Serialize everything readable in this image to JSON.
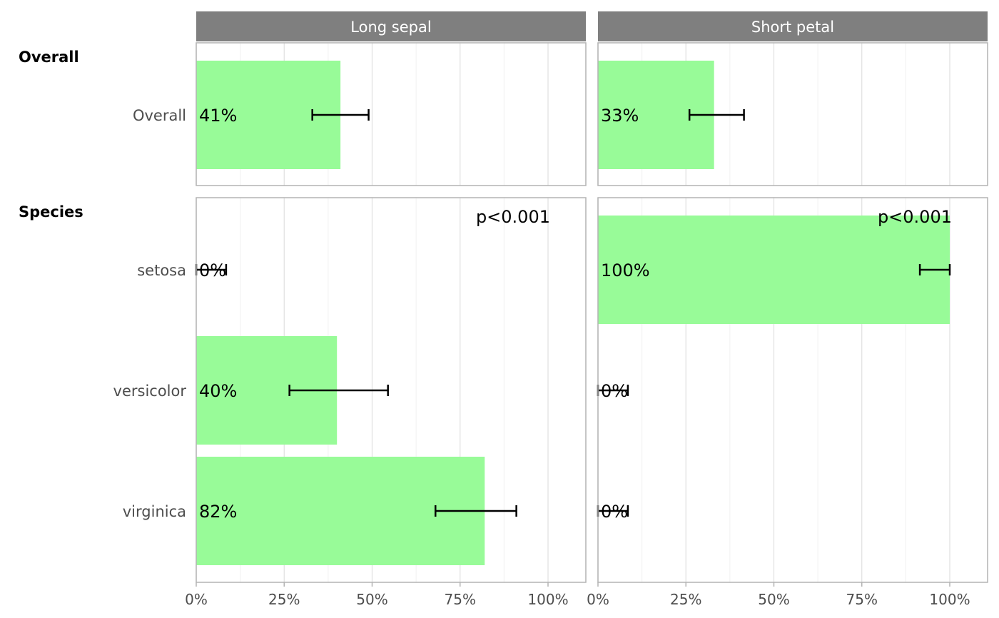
{
  "chart_data": {
    "type": "bar",
    "orientation": "horizontal",
    "xlim": [
      0,
      100
    ],
    "x_ticks": [
      "0%",
      "25%",
      "50%",
      "75%",
      "100%"
    ],
    "x_tick_values": [
      0,
      25,
      50,
      75,
      100
    ],
    "grid": true,
    "bar_color": "#98FB98",
    "panel_border_color": "#b3b3b3",
    "strip_color": "#7f7f7f",
    "columns": [
      "Long sepal",
      "Short petal"
    ],
    "groups": [
      {
        "label": "Overall",
        "p_value": "",
        "rows": [
          {
            "label": "Overall",
            "values": [
              {
                "value": 41,
                "label": "41%",
                "ci": [
                  33,
                  49
                ]
              },
              {
                "value": 33,
                "label": "33%",
                "ci": [
                  26,
                  41.5
                ]
              }
            ]
          }
        ]
      },
      {
        "label": "Species",
        "p_value": "p<0.001",
        "rows": [
          {
            "label": "setosa",
            "values": [
              {
                "value": 0,
                "label": "0%",
                "ci": [
                  0,
                  8.5
                ]
              },
              {
                "value": 100,
                "label": "100%",
                "ci": [
                  91.5,
                  100
                ]
              }
            ]
          },
          {
            "label": "versicolor",
            "values": [
              {
                "value": 40,
                "label": "40%",
                "ci": [
                  26.5,
                  54.5
                ]
              },
              {
                "value": 0,
                "label": "0%",
                "ci": [
                  0,
                  8.5
                ]
              }
            ]
          },
          {
            "label": "virginica",
            "values": [
              {
                "value": 82,
                "label": "82%",
                "ci": [
                  68,
                  91
                ]
              },
              {
                "value": 0,
                "label": "0%",
                "ci": [
                  0,
                  8.5
                ]
              }
            ]
          }
        ]
      }
    ]
  }
}
